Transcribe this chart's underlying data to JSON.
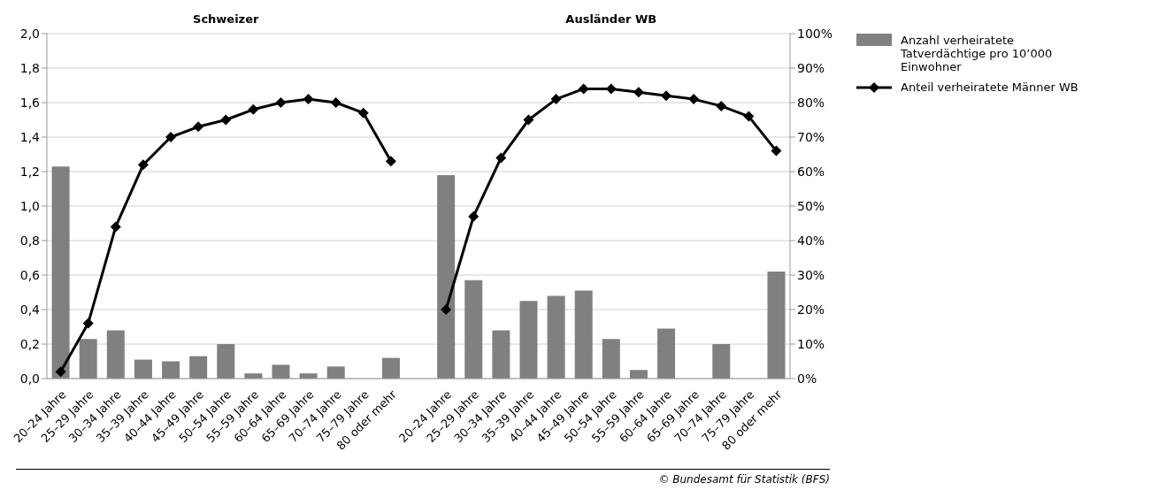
{
  "chart_data": {
    "type": "bar",
    "annotations": [
      "Schweizer",
      "Ausländer WB",
      "© Bundesamt für Statistik (BFS)"
    ],
    "categories": [
      "20–24 Jahre",
      "25–29 Jahre",
      "30–34 Jahre",
      "35–39 Jahre",
      "40–44 Jahre",
      "45–49 Jahre",
      "50–54 Jahre",
      "55–59 Jahre",
      "60–64 Jahre",
      "65–69 Jahre",
      "70–74 Jahre",
      "75–79 Jahre",
      "80 oder mehr",
      null,
      "20–24 Jahre",
      "25–29 Jahre",
      "30–34 Jahre",
      "35–39 Jahre",
      "40–44 Jahre",
      "45–49 Jahre",
      "50–54 Jahre",
      "55–59 Jahre",
      "60–64 Jahre",
      "65–69 Jahre",
      "70–74 Jahre",
      "75–79 Jahre",
      "80 oder mehr"
    ],
    "series": [
      {
        "name": "Anzahl verheiratete Tatverdächtige pro 10’000 Einwohner",
        "color": "#808080",
        "values": [
          1.23,
          0.23,
          0.28,
          0.11,
          0.1,
          0.13,
          0.2,
          0.03,
          0.08,
          0.03,
          0.07,
          null,
          0.12,
          null,
          1.18,
          0.57,
          0.28,
          0.45,
          0.48,
          0.51,
          0.23,
          0.05,
          0.29,
          null,
          0.2,
          null,
          0.62
        ]
      },
      {
        "name": "Anteil verheiratete Männer WB",
        "type": "line",
        "axis": "y2",
        "color": "#000000",
        "marker": "diamond",
        "values": [
          2,
          16,
          44,
          62,
          70,
          73,
          75,
          78,
          80,
          81,
          80,
          77,
          63,
          null,
          20,
          47,
          64,
          75,
          81,
          84,
          84,
          83,
          82,
          81,
          79,
          76,
          66
        ]
      }
    ],
    "ylim": [
      0,
      2
    ],
    "yticks": [
      {
        "value": 0,
        "label": "0,0"
      },
      {
        "value": 0.2,
        "label": "0,2"
      },
      {
        "value": 0.4,
        "label": "0,4"
      },
      {
        "value": 0.6,
        "label": "0,6"
      },
      {
        "value": 0.8,
        "label": "0,8"
      },
      {
        "value": 1,
        "label": "1,0"
      },
      {
        "value": 1.2,
        "label": "1,2"
      },
      {
        "value": 1.4,
        "label": "1,4"
      },
      {
        "value": 1.6,
        "label": "1,6"
      },
      {
        "value": 1.8,
        "label": "1,8"
      },
      {
        "value": 2,
        "label": "2,0"
      }
    ],
    "y2lim": [
      0,
      100
    ],
    "y2ticks": [
      {
        "value": 0,
        "label": "0%"
      },
      {
        "value": 10,
        "label": "10%"
      },
      {
        "value": 20,
        "label": "20%"
      },
      {
        "value": 30,
        "label": "30%"
      },
      {
        "value": 40,
        "label": "40%"
      },
      {
        "value": 50,
        "label": "50%"
      },
      {
        "value": 60,
        "label": "60%"
      },
      {
        "value": 70,
        "label": "70%"
      },
      {
        "value": 80,
        "label": "80%"
      },
      {
        "value": 90,
        "label": "90%"
      },
      {
        "value": 100,
        "label": "100%"
      }
    ],
    "grid": "y",
    "legend": "top right"
  }
}
